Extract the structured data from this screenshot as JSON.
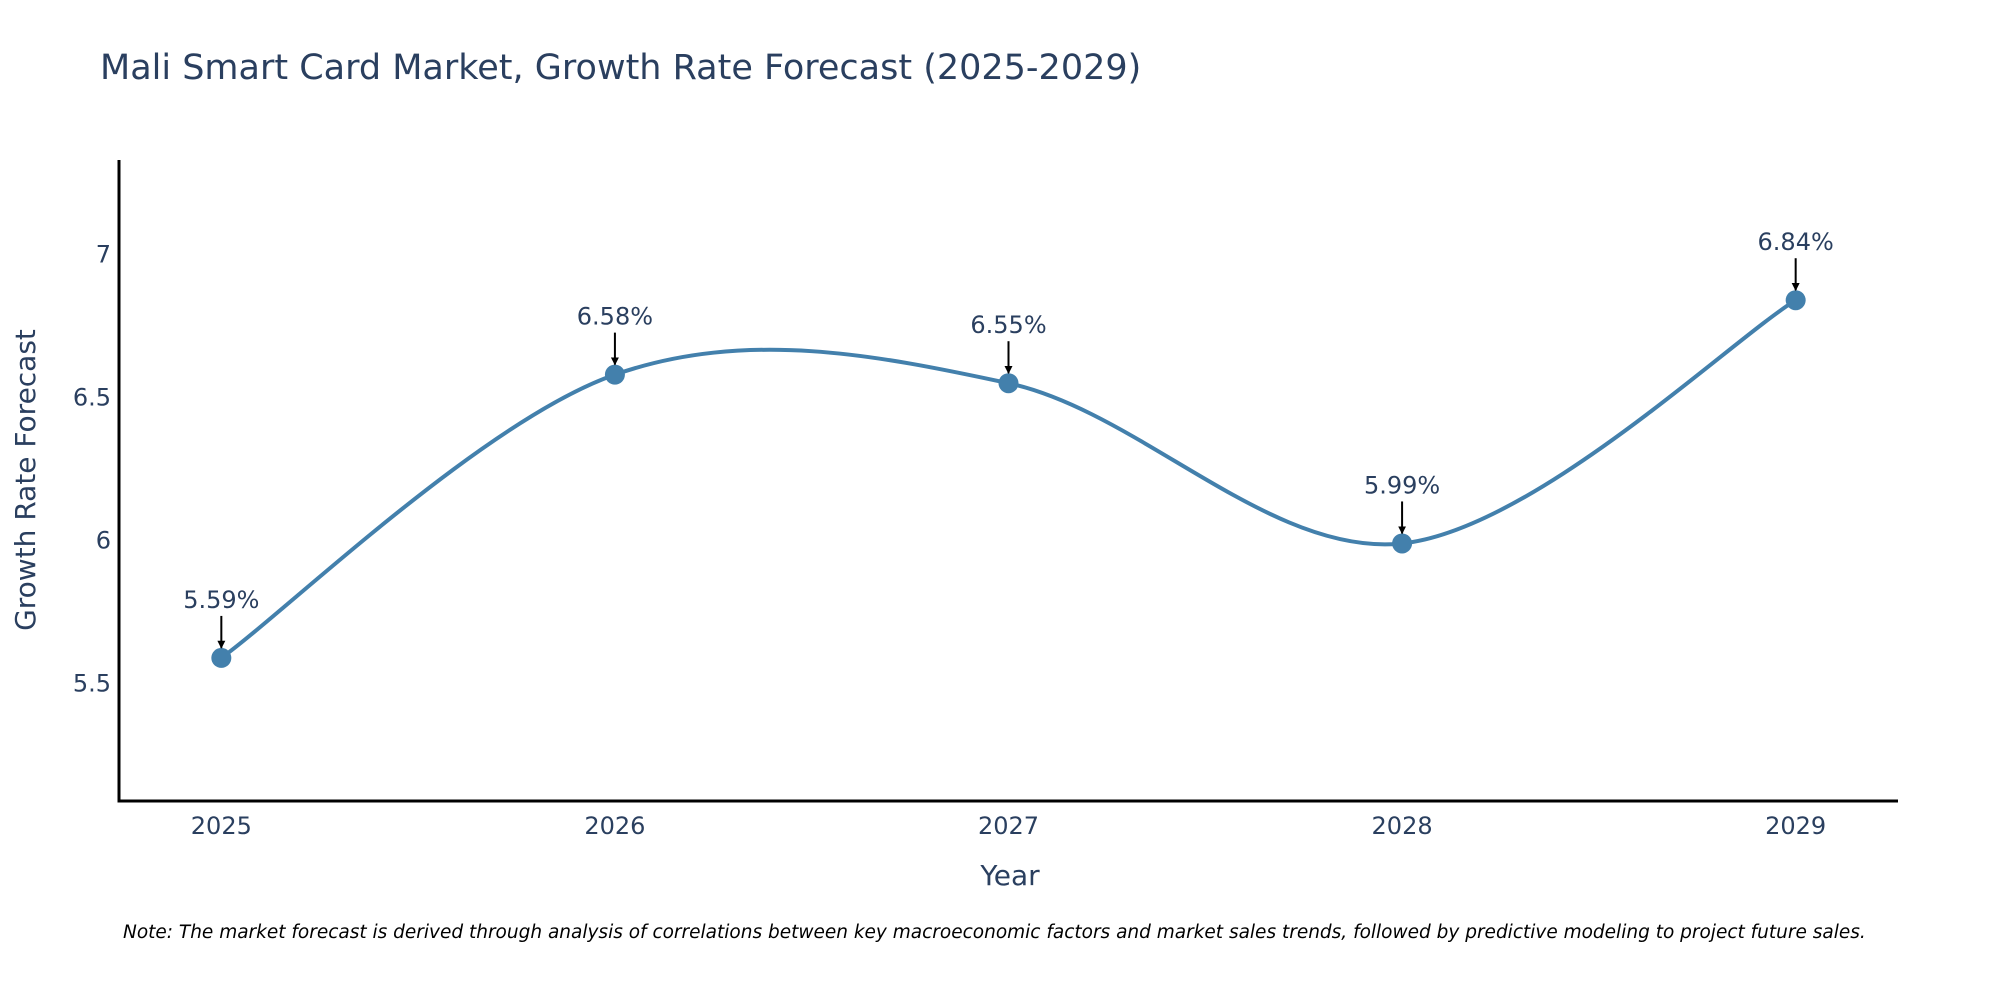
{
  "chart_data": {
    "type": "line",
    "title": "Mali Smart Card Market, Growth Rate Forecast (2025-2029)",
    "xlabel": "Year",
    "ylabel": "Growth Rate Forecast",
    "categories": [
      "2025",
      "2026",
      "2027",
      "2028",
      "2029"
    ],
    "series": [
      {
        "name": "Growth Rate Forecast",
        "values": [
          5.59,
          6.58,
          6.55,
          5.99,
          6.84
        ],
        "labels": [
          "5.59%",
          "6.58%",
          "6.55%",
          "5.99%",
          "6.84%"
        ]
      }
    ],
    "yticks": [
      5.5,
      6,
      6.5,
      7
    ],
    "ytick_labels": [
      "5.5",
      "6",
      "6.5",
      "7"
    ],
    "ylim": [
      5.09,
      7.33
    ],
    "xlim": [
      -0.26,
      4.26
    ],
    "grid": false,
    "line_shape": "spline",
    "colors": {
      "line": "#4380ac",
      "marker": "#4380ac",
      "text": "#2a3f5f",
      "axis": "#000000",
      "arrow": "#000000"
    }
  },
  "note": "Note: The market forecast is derived through analysis of correlations between key macroeconomic factors and market sales trends, followed by predictive modeling to project future sales."
}
